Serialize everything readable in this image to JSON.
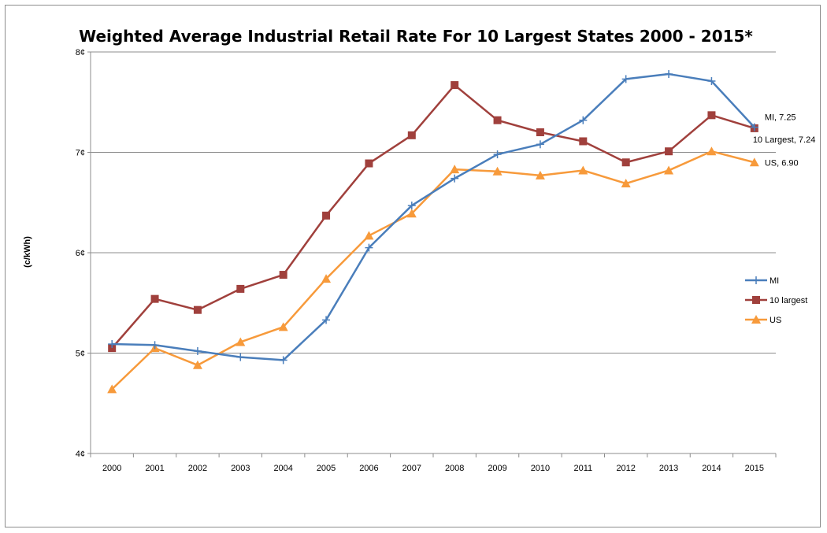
{
  "chart_data": {
    "type": "line",
    "title": "Weighted Average Industrial Retail Rate For 10 Largest States 2000 - 2015*",
    "ylabel": "(c/kWh)",
    "xlabel": "",
    "categories": [
      "2000",
      "2001",
      "2002",
      "2003",
      "2004",
      "2005",
      "2006",
      "2007",
      "2008",
      "2009",
      "2010",
      "2011",
      "2012",
      "2013",
      "2014",
      "2015"
    ],
    "ylim": [
      4,
      8
    ],
    "yticks": [
      4,
      5,
      6,
      7,
      8
    ],
    "ytick_labels": [
      "4¢",
      "5¢",
      "6¢",
      "7¢",
      "8¢"
    ],
    "grid": "horizontal",
    "legend_position": "right",
    "series": [
      {
        "name": "MI",
        "color": "#4a7ebb",
        "marker": "plus",
        "values": [
          5.09,
          5.08,
          5.02,
          4.96,
          4.93,
          5.33,
          6.05,
          6.47,
          6.74,
          6.98,
          7.08,
          7.32,
          7.73,
          7.78,
          7.71,
          7.25
        ]
      },
      {
        "name": "10 largest",
        "color": "#a0403c",
        "marker": "square",
        "values": [
          5.05,
          5.54,
          5.43,
          5.64,
          5.78,
          6.37,
          6.89,
          7.17,
          7.67,
          7.32,
          7.2,
          7.11,
          6.9,
          7.01,
          7.37,
          7.24
        ]
      },
      {
        "name": "US",
        "color": "#f79a3b",
        "marker": "triangle",
        "values": [
          4.64,
          5.05,
          4.88,
          5.11,
          5.26,
          5.74,
          6.17,
          6.39,
          6.83,
          6.81,
          6.77,
          6.82,
          6.69,
          6.82,
          7.01,
          6.9
        ]
      }
    ],
    "data_labels": [
      {
        "series": "MI",
        "text": "MI, 7.25"
      },
      {
        "series": "10 largest",
        "text": "10 Largest, 7.24"
      },
      {
        "series": "US",
        "text": "US, 6.90"
      }
    ]
  }
}
